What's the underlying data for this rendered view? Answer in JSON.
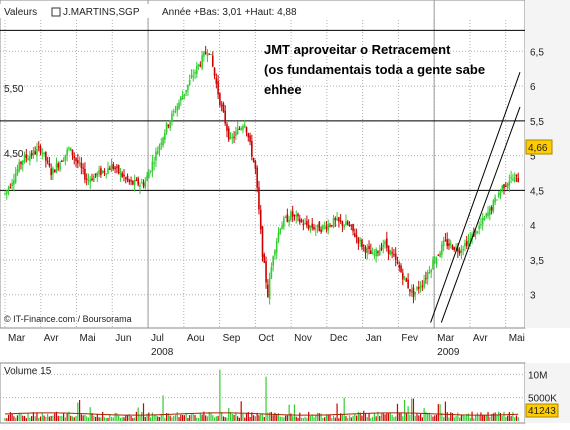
{
  "header": {
    "label_valeurs": "Valeurs",
    "ticker": "J.MARTINS,SGP",
    "range_text": "Année +Bas: 3,01 +Haut: 4,88"
  },
  "annotation": {
    "lines": [
      "JMT aproveitar o Retracement",
      "(os fundamentais toda a gente sabe",
      "ehhee"
    ]
  },
  "credit": "© IT-Finance.com / Boursorama",
  "last_price_badge": "4,66",
  "hline_labels": [
    "5,50",
    "4,50"
  ],
  "volume_panel": {
    "title": "Volume 15",
    "last_volume_badge": "41243"
  },
  "colors": {
    "up": "#33cc33",
    "down": "#cc0000",
    "grid": "#b0b0b0",
    "badge_bg": "#ffcc00",
    "volume_avg": "#aa2200"
  },
  "chart_data": {
    "type": "candlestick",
    "price_axis": {
      "ticks": [
        3,
        3.5,
        4,
        4.5,
        5,
        5.5,
        6,
        6.5
      ],
      "tick_labels": [
        "3",
        "3,5",
        "4",
        "4,5",
        "5",
        "5,5",
        "6",
        "6,5"
      ],
      "range": [
        2.55,
        6.95
      ]
    },
    "x_axis": {
      "month_labels": [
        "Mar",
        "Avr",
        "Mai",
        "Jun",
        "Jul",
        "Aou",
        "Sep",
        "Oct",
        "Nov",
        "Dec",
        "Jan",
        "Fev",
        "Mar",
        "Avr",
        "Mai"
      ],
      "year_labels": [
        {
          "text": "2008",
          "month_index": 4
        },
        {
          "text": "2009",
          "month_index": 12
        }
      ]
    },
    "horizontal_lines": [
      6.8,
      5.5,
      4.5
    ],
    "price_path": [
      [
        0,
        4.45
      ],
      [
        0.5,
        4.95
      ],
      [
        1,
        5.1
      ],
      [
        1.3,
        4.75
      ],
      [
        1.8,
        5.1
      ],
      [
        2.3,
        4.65
      ],
      [
        3,
        4.85
      ],
      [
        3.5,
        4.6
      ],
      [
        3.9,
        4.6
      ],
      [
        4.2,
        5.0
      ],
      [
        4.5,
        5.4
      ],
      [
        4.9,
        5.8
      ],
      [
        5.3,
        6.2
      ],
      [
        5.7,
        6.55
      ],
      [
        6.0,
        5.8
      ],
      [
        6.3,
        5.2
      ],
      [
        6.7,
        5.5
      ],
      [
        7.0,
        4.8
      ],
      [
        7.2,
        3.6
      ],
      [
        7.35,
        3.0
      ],
      [
        7.5,
        3.6
      ],
      [
        7.7,
        4.0
      ],
      [
        8.0,
        4.15
      ],
      [
        8.4,
        4.0
      ],
      [
        8.8,
        3.95
      ],
      [
        9.2,
        4.05
      ],
      [
        9.6,
        4.0
      ],
      [
        10.0,
        3.7
      ],
      [
        10.3,
        3.55
      ],
      [
        10.6,
        3.75
      ],
      [
        10.9,
        3.5
      ],
      [
        11.1,
        3.3
      ],
      [
        11.4,
        3.0
      ],
      [
        11.7,
        3.2
      ],
      [
        12.0,
        3.5
      ],
      [
        12.3,
        3.75
      ],
      [
        12.7,
        3.65
      ],
      [
        13.0,
        3.8
      ],
      [
        13.3,
        4.0
      ],
      [
        13.6,
        4.25
      ],
      [
        13.9,
        4.55
      ],
      [
        14.1,
        4.66
      ]
    ],
    "volume_axis": {
      "tick_labels": [
        "10M",
        "5000K"
      ],
      "tick_values": [
        10000000,
        5000000
      ],
      "range": [
        0,
        12000000
      ]
    },
    "volume_spikes": [
      {
        "month": 6.0,
        "value": 11000000
      },
      {
        "month": 7.3,
        "value": 9500000
      },
      {
        "month": 4.4,
        "value": 5500000
      },
      {
        "month": 2.1,
        "value": 4500000
      },
      {
        "month": 9.5,
        "value": 5000000
      },
      {
        "month": 11.4,
        "value": 4800000
      }
    ],
    "trendlines": [
      {
        "from": [
          11.9,
          2.6
        ],
        "to": [
          14.4,
          6.2
        ]
      },
      {
        "from": [
          12.2,
          2.6
        ],
        "to": [
          14.4,
          5.7
        ]
      }
    ]
  }
}
